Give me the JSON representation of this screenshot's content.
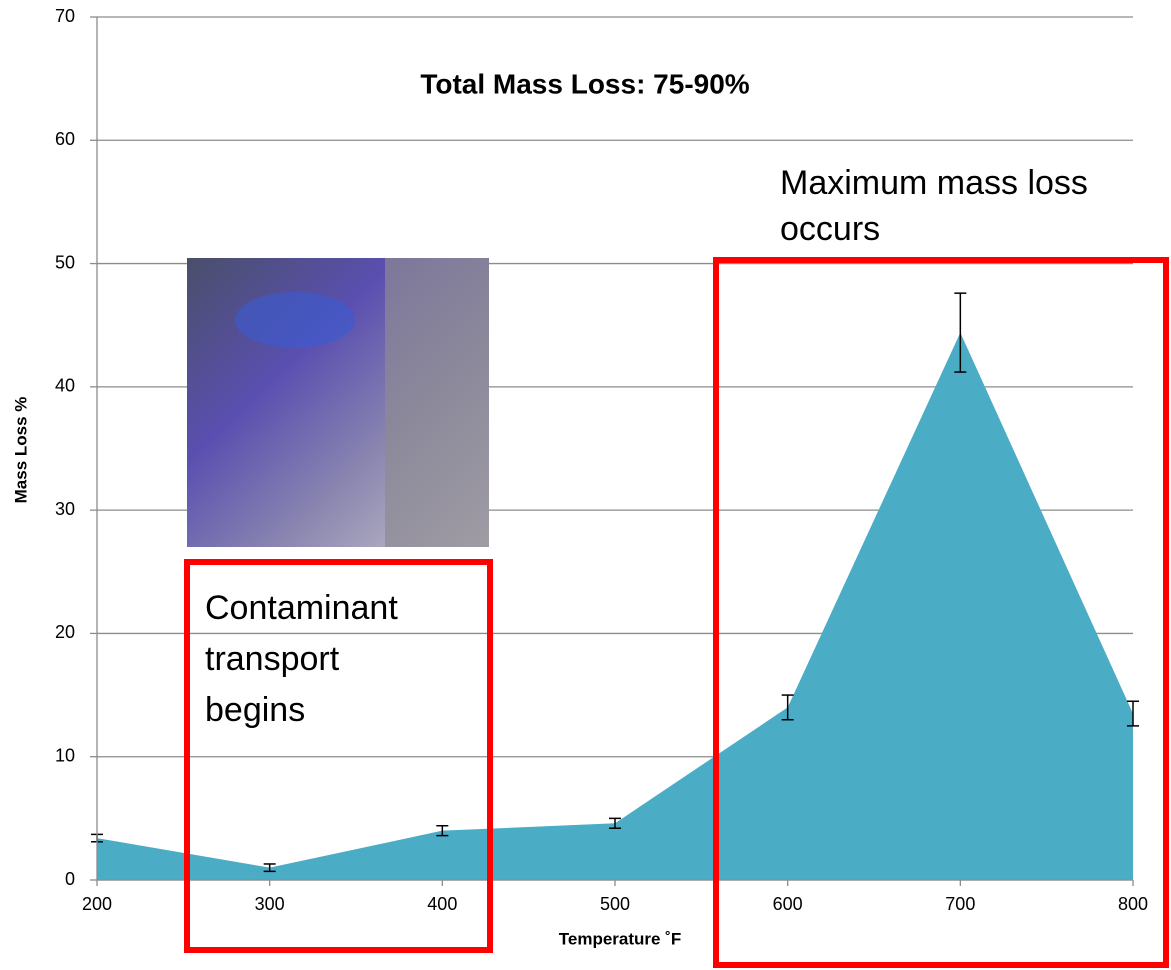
{
  "chart_data": {
    "type": "area",
    "title": "Total Mass Loss: 75-90%",
    "x_label": "Temperature ˚F",
    "y_label": "Mass Loss %",
    "x": [
      200,
      300,
      400,
      500,
      600,
      700,
      800
    ],
    "series": [
      {
        "color": "#4bacc6",
        "values": [
          3.4,
          1.0,
          4.0,
          4.6,
          14.0,
          44.4,
          13.5
        ],
        "errors": [
          0.3,
          0.3,
          0.4,
          0.4,
          1.0,
          3.2,
          1.0
        ]
      }
    ],
    "xlim": [
      200,
      800
    ],
    "xticks": [
      200,
      300,
      400,
      500,
      600,
      700,
      800
    ],
    "ylim": [
      0,
      70
    ],
    "yticks": [
      0,
      10,
      20,
      30,
      40,
      50,
      60,
      70
    ],
    "grid": true,
    "annotations": [
      {
        "lines": [
          "Maximum mass loss",
          "occurs"
        ]
      },
      {
        "lines": [
          "Contaminant",
          "transport",
          "begins"
        ]
      }
    ]
  }
}
